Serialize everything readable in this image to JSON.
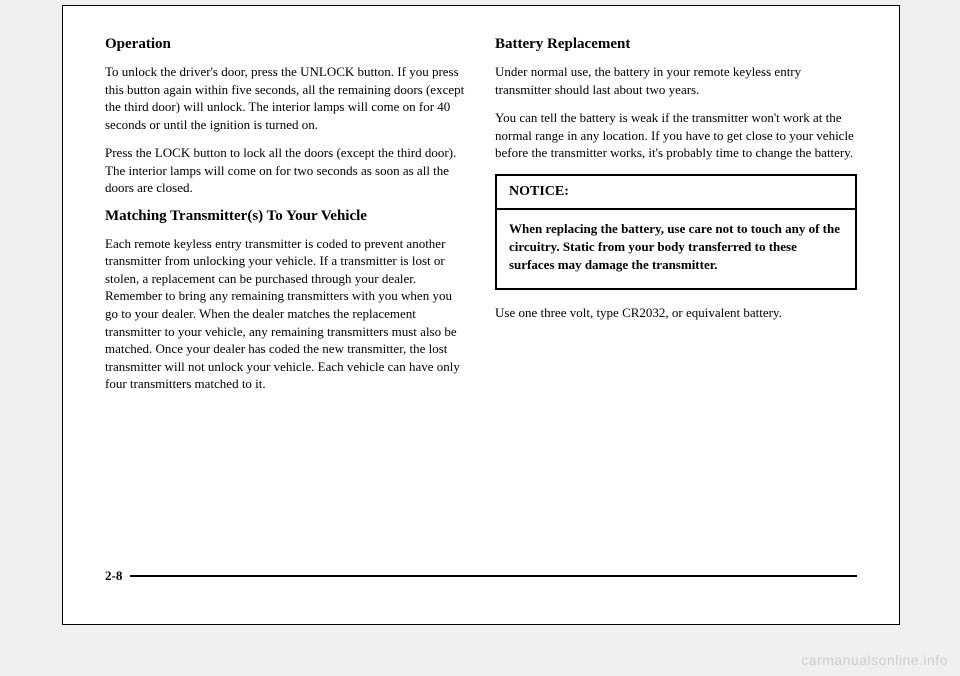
{
  "left": {
    "h1": "Operation",
    "p1": "To unlock the driver's door, press the UNLOCK button. If you press this button again within five seconds, all the remaining doors (except the third door) will unlock. The interior lamps will come on for 40 seconds or until the ignition is turned on.",
    "p2": "Press the LOCK button to lock all the doors (except the third door). The interior lamps will come on for two seconds as soon as all the doors are closed.",
    "h2": "Matching Transmitter(s) To Your Vehicle",
    "p3": "Each remote keyless entry transmitter is coded to prevent another transmitter from unlocking your vehicle. If a transmitter is lost or stolen, a replacement can be purchased through your dealer. Remember to bring any remaining transmitters with you when you go to your dealer. When the dealer matches the replacement transmitter to your vehicle, any remaining transmitters must also be matched. Once your dealer has coded the new transmitter, the lost transmitter will not unlock your vehicle. Each vehicle can have only four transmitters matched to it."
  },
  "right": {
    "h1": "Battery Replacement",
    "p1": "Under normal use, the battery in your remote keyless entry transmitter should last about two years.",
    "p2": "You can tell the battery is weak if the transmitter won't work at the normal range in any location. If you have to get close to your vehicle before the transmitter works, it's probably time to change the battery.",
    "notice_title": "NOTICE:",
    "notice_body": "When replacing the battery, use care not to touch any of the circuitry. Static from your body transferred to these surfaces may damage the transmitter.",
    "p3": "Use one three volt, type CR2032, or equivalent battery."
  },
  "page_number": "2-8",
  "watermark": "carmanualsonline.info"
}
